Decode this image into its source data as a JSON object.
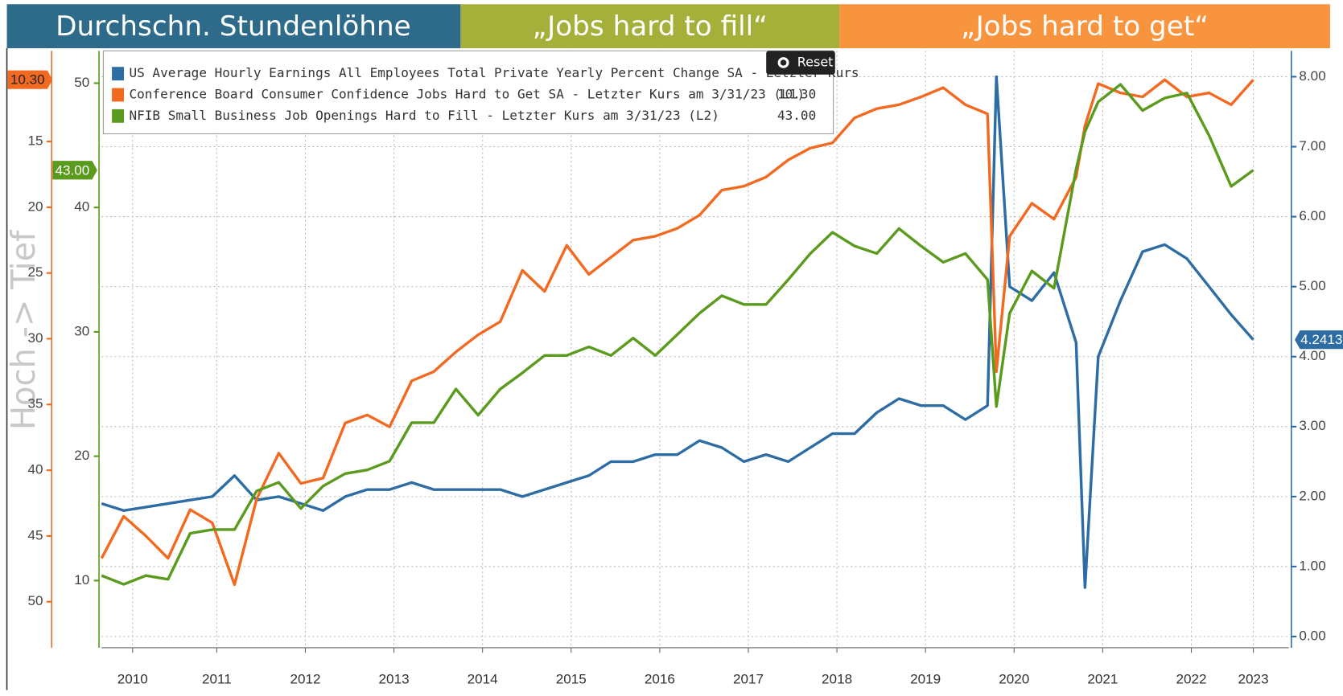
{
  "header": {
    "left": "Durchschn. Stundenlöhne",
    "middle": "„Jobs hard to fill“",
    "right": "„Jobs hard to get“"
  },
  "reset": "Reset",
  "chart_data": {
    "type": "line",
    "axis_label": "Hoch -> Tief",
    "x": [
      2010.2,
      2010.45,
      2010.7,
      2010.95,
      2011.2,
      2011.45,
      2011.7,
      2011.95,
      2012.2,
      2012.45,
      2012.7,
      2012.95,
      2013.2,
      2013.45,
      2013.7,
      2013.95,
      2014.2,
      2014.45,
      2014.7,
      2014.95,
      2015.2,
      2015.45,
      2015.7,
      2015.95,
      2016.2,
      2016.45,
      2016.7,
      2016.95,
      2017.2,
      2017.45,
      2017.7,
      2017.95,
      2018.2,
      2018.45,
      2018.7,
      2018.95,
      2019.2,
      2019.45,
      2019.7,
      2019.95,
      2020.2,
      2020.3,
      2020.45,
      2020.7,
      2020.95,
      2021.2,
      2021.3,
      2021.45,
      2021.7,
      2021.95,
      2022.2,
      2022.45,
      2022.7,
      2022.95,
      2023.2
    ],
    "xlim": [
      2010.2,
      2023.6
    ],
    "xticks": [
      {
        "value": 2010.55,
        "label": "2010"
      },
      {
        "value": 2011.5,
        "label": "2011"
      },
      {
        "value": 2012.5,
        "label": "2012"
      },
      {
        "value": 2013.5,
        "label": "2013"
      },
      {
        "value": 2014.5,
        "label": "2014"
      },
      {
        "value": 2015.5,
        "label": "2015"
      },
      {
        "value": 2016.5,
        "label": "2016"
      },
      {
        "value": 2017.5,
        "label": "2017"
      },
      {
        "value": 2018.5,
        "label": "2018"
      },
      {
        "value": 2019.5,
        "label": "2019"
      },
      {
        "value": 2020.5,
        "label": "2020"
      },
      {
        "value": 2021.5,
        "label": "2021"
      },
      {
        "value": 2022.5,
        "label": "2022"
      },
      {
        "value": 2023.2,
        "label": "2023"
      }
    ],
    "ylim": [
      8.1,
      53.5
    ],
    "yinvert": true,
    "ycolor": "#f26a21",
    "yticks": [
      15,
      20,
      25,
      30,
      35,
      40,
      45,
      50
    ],
    "y2lim": [
      4.6,
      52.6
    ],
    "y2color": "#5a9a1c",
    "y2ticks": [
      10,
      20,
      30,
      40,
      50
    ],
    "y3lim": [
      -0.16,
      8.37
    ],
    "y3color": "#2e6da4",
    "y3ticks": [
      {
        "value": 0,
        "label": "0.00"
      },
      {
        "value": 1,
        "label": "1.00"
      },
      {
        "value": 2,
        "label": "2.00"
      },
      {
        "value": 3,
        "label": "3.00"
      },
      {
        "value": 4,
        "label": "4.00"
      },
      {
        "value": 5,
        "label": "5.00"
      },
      {
        "value": 6,
        "label": "6.00"
      },
      {
        "value": 7,
        "label": "7.00"
      },
      {
        "value": 8,
        "label": "8.00"
      }
    ],
    "grid": true,
    "series": [
      {
        "name": "US Average Hourly Earnings All Employees Total Private Yearly Percent Change SA - Letzter Kurs",
        "color": "#2e6da4",
        "axis": "y3",
        "values": [
          1.9,
          1.8,
          1.85,
          1.9,
          1.95,
          2.0,
          2.3,
          1.95,
          2.0,
          1.9,
          1.8,
          2.0,
          2.1,
          2.1,
          2.2,
          2.1,
          2.1,
          2.1,
          2.1,
          2.0,
          2.1,
          2.2,
          2.3,
          2.5,
          2.5,
          2.6,
          2.6,
          2.8,
          2.7,
          2.5,
          2.6,
          2.5,
          2.7,
          2.9,
          2.9,
          3.2,
          3.4,
          3.3,
          3.3,
          3.1,
          3.3,
          8.0,
          5.0,
          4.8,
          5.2,
          4.2,
          0.7,
          4.0,
          4.8,
          5.5,
          5.6,
          5.4,
          5.0,
          4.6,
          4.2413
        ]
      },
      {
        "name": "Conference Board Consumer Confidence Jobs Hard to Get SA - Letzter Kurs am 3/31/23 (L1)",
        "color": "#f26a21",
        "axis": "y",
        "tag": "10.30",
        "values": [
          46.7,
          43.5,
          45,
          46.7,
          43,
          44,
          48.7,
          42.2,
          38.7,
          41,
          40.6,
          36.4,
          35.8,
          36.7,
          33.2,
          32.5,
          31,
          29.7,
          28.7,
          24.8,
          26.4,
          22.9,
          25.1,
          23.8,
          22.5,
          22.2,
          21.6,
          20.6,
          18.7,
          18.4,
          17.7,
          16.4,
          15.5,
          15.1,
          13.2,
          12.5,
          12.2,
          11.6,
          10.9,
          12.2,
          12.9,
          32.5,
          22.2,
          19.7,
          20.9,
          17.7,
          13.8,
          10.6,
          11.3,
          11.6,
          10.3,
          11.6,
          11.3,
          12.2,
          10.3
        ]
      },
      {
        "name": "NFIB Small Business Job Openings Hard to Fill - Letzter Kurs am 3/31/23 (L2)",
        "color": "#5a9a1c",
        "axis": "y2",
        "tag": "43.00",
        "values": [
          10.4,
          9.7,
          10.4,
          10.1,
          13.8,
          14.1,
          14.1,
          17.2,
          17.9,
          15.8,
          17.6,
          18.6,
          18.9,
          19.6,
          22.7,
          22.7,
          25.4,
          23.3,
          25.4,
          26.7,
          28.1,
          28.1,
          28.8,
          28.1,
          29.5,
          28.1,
          29.8,
          31.5,
          32.9,
          32.2,
          32.2,
          34.2,
          36.3,
          38,
          36.9,
          36.3,
          38.3,
          36.9,
          35.6,
          36.3,
          34.2,
          24,
          31.5,
          34.9,
          33.5,
          43.1,
          46.1,
          48.5,
          49.9,
          47.8,
          48.8,
          49.2,
          45.8,
          41.7,
          43
        ]
      }
    ]
  }
}
